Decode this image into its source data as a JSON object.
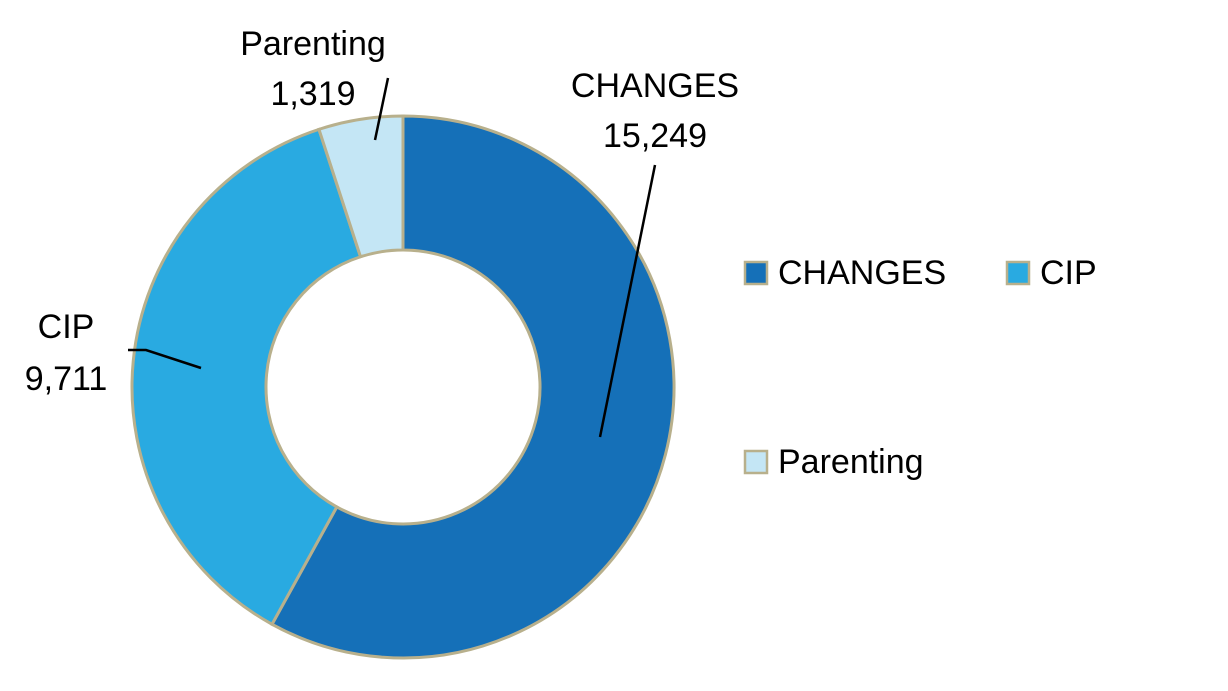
{
  "chart_data": {
    "type": "pie",
    "subtype": "donut",
    "categories": [
      "CHANGES",
      "CIP",
      "Parenting"
    ],
    "values": [
      15249,
      9711,
      1319
    ],
    "value_labels": [
      "15,249",
      "9,711",
      "1,319"
    ],
    "colors": [
      "#1570B8",
      "#29AAE1",
      "#C4E6F5"
    ],
    "slice_border_color": "#B8B08C",
    "legend": {
      "position": "right",
      "entries": [
        "CHANGES",
        "CIP",
        "Parenting"
      ]
    },
    "title": ""
  }
}
